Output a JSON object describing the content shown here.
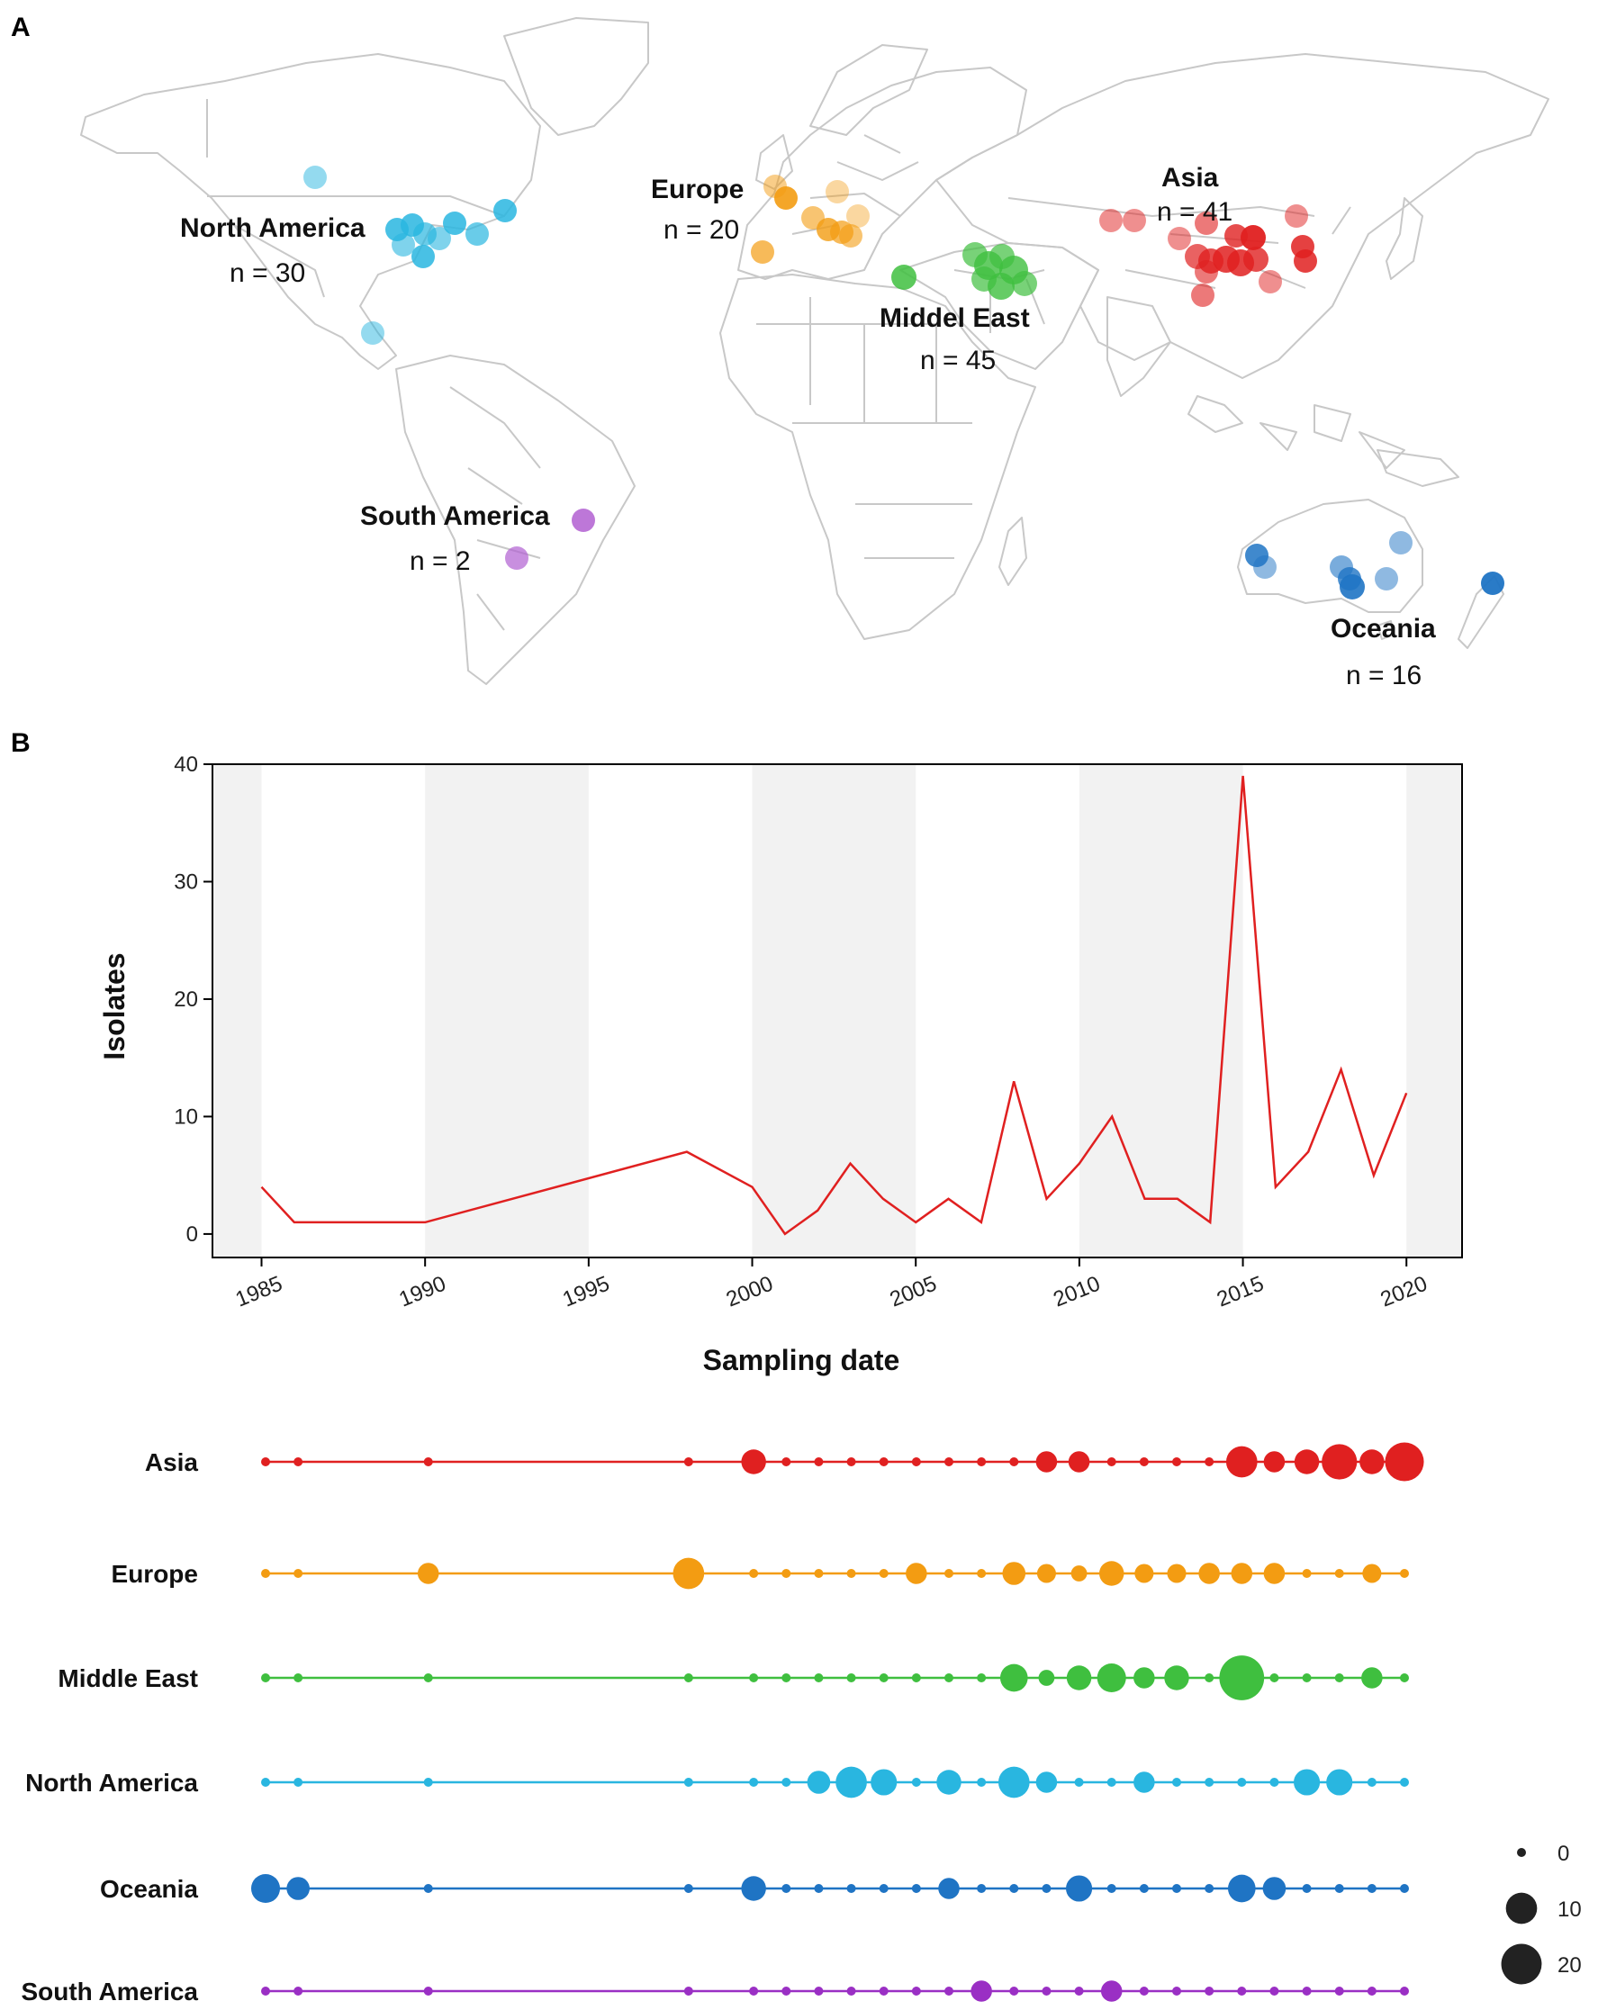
{
  "panel_a": {
    "letter": "A",
    "regions": [
      {
        "name": "North America",
        "n_text": "n = 30",
        "color": "#29b6e0"
      },
      {
        "name": "Europe",
        "n_text": "n = 20",
        "color": "#f39c12"
      },
      {
        "name": "Asia",
        "n_text": "n = 41",
        "color": "#e02020"
      },
      {
        "name": "Middel East",
        "n_text": "n = 45",
        "color": "#3fbf3f"
      },
      {
        "name": "South America",
        "n_text": "n = 2",
        "color": "#b15fd1"
      },
      {
        "name": "Oceania",
        "n_text": "n = 16",
        "color": "#1f74c4"
      }
    ]
  },
  "panel_b": {
    "letter": "B"
  },
  "chart_data": [
    {
      "type": "line",
      "title": "",
      "xlabel": "Sampling date",
      "ylabel": "Isolates",
      "xlim": [
        1983.5,
        2021.7
      ],
      "ylim": [
        -2,
        40
      ],
      "x_ticks": [
        1985,
        1990,
        1995,
        2000,
        2005,
        2010,
        2015,
        2020
      ],
      "y_ticks": [
        0,
        10,
        20,
        30,
        40
      ],
      "shaded_bands": [
        [
          1983.5,
          1985
        ],
        [
          1990,
          1995
        ],
        [
          2000,
          2005
        ],
        [
          2010,
          2015
        ],
        [
          2020,
          2021.7
        ]
      ],
      "line_color": "#e02020",
      "series": [
        {
          "name": "Isolates",
          "x": [
            1985,
            1986,
            1990,
            1998,
            2000,
            2001,
            2002,
            2003,
            2004,
            2005,
            2006,
            2007,
            2008,
            2009,
            2010,
            2011,
            2012,
            2013,
            2014,
            2015,
            2016,
            2017,
            2018,
            2019,
            2020
          ],
          "values": [
            4,
            1,
            1,
            7,
            4,
            0,
            2,
            6,
            3,
            1,
            3,
            1,
            13,
            3,
            6,
            10,
            3,
            3,
            1,
            39,
            4,
            7,
            14,
            5,
            12
          ]
        }
      ]
    },
    {
      "type": "scatter",
      "title": "",
      "xlabel": "",
      "ylabel": "",
      "x_years": [
        1985,
        1986,
        1990,
        1998,
        2000,
        2001,
        2002,
        2003,
        2004,
        2005,
        2006,
        2007,
        2008,
        2009,
        2010,
        2011,
        2012,
        2013,
        2014,
        2015,
        2016,
        2017,
        2018,
        2019,
        2020
      ],
      "size_legend": {
        "labels": [
          "0",
          "10",
          "20"
        ],
        "values": [
          0,
          10,
          20
        ]
      },
      "series": [
        {
          "name": "Asia",
          "color": "#e02020",
          "values": [
            0,
            0,
            0,
            0,
            5,
            0,
            0,
            0,
            0,
            0,
            0,
            0,
            0,
            3,
            3,
            0,
            0,
            0,
            0,
            10,
            3,
            5,
            14,
            5,
            18
          ]
        },
        {
          "name": "Europe",
          "color": "#f39c12",
          "values": [
            0,
            0,
            3,
            10,
            0,
            0,
            0,
            0,
            0,
            3,
            0,
            0,
            4,
            2,
            1,
            5,
            2,
            2,
            3,
            3,
            3,
            0,
            0,
            2,
            0
          ]
        },
        {
          "name": "Middle East",
          "color": "#3fbf3f",
          "values": [
            0,
            0,
            0,
            0,
            0,
            0,
            0,
            0,
            0,
            0,
            0,
            0,
            7,
            1,
            5,
            8,
            3,
            5,
            0,
            26,
            0,
            0,
            0,
            3,
            0
          ]
        },
        {
          "name": "North America",
          "color": "#29b6e0",
          "values": [
            0,
            0,
            0,
            0,
            0,
            0,
            4,
            10,
            6,
            0,
            5,
            0,
            10,
            3,
            0,
            0,
            3,
            0,
            0,
            0,
            0,
            6,
            6,
            0,
            0
          ]
        },
        {
          "name": "Oceania",
          "color": "#1f74c4",
          "values": [
            8,
            4,
            0,
            0,
            5,
            0,
            0,
            0,
            0,
            0,
            3,
            0,
            0,
            0,
            6,
            0,
            0,
            0,
            0,
            7,
            4,
            0,
            0,
            0,
            0
          ]
        },
        {
          "name": "South America",
          "color": "#9a2fc4",
          "values": [
            0,
            0,
            0,
            0,
            0,
            0,
            0,
            0,
            0,
            0,
            0,
            3,
            0,
            0,
            0,
            3,
            0,
            0,
            0,
            0,
            0,
            0,
            0,
            0,
            0
          ]
        }
      ]
    }
  ]
}
